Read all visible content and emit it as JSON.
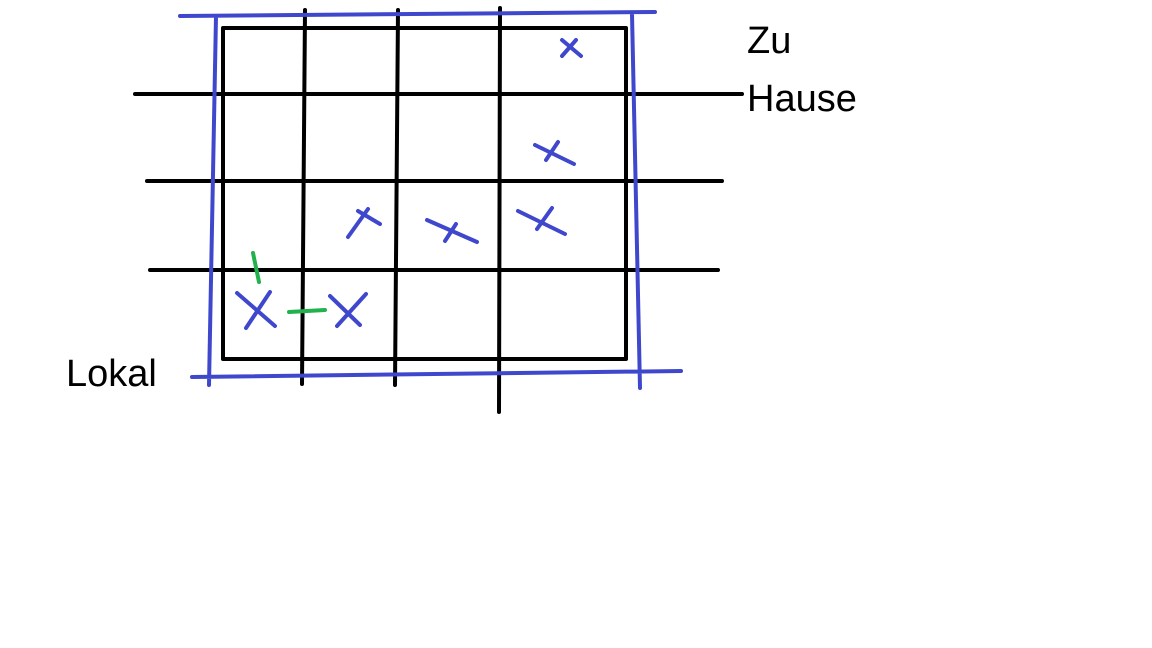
{
  "labels": {
    "top_right_line1": "Zu",
    "top_right_line2": "Hause",
    "bottom_left": "Lokal"
  },
  "colors": {
    "ink": "#000000",
    "blue": "#3f48cc",
    "green": "#22b14c",
    "background": "#ffffff"
  }
}
